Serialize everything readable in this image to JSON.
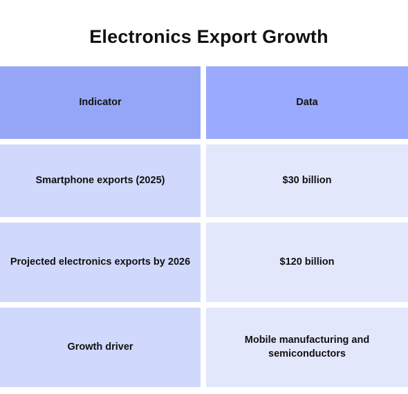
{
  "title": "Electronics Export Growth",
  "table": {
    "headers": [
      "Indicator",
      "Data"
    ],
    "rows": [
      [
        "Smartphone exports (2025)",
        "$30 billion"
      ],
      [
        "Projected electronics exports by 2026",
        "$120 billion"
      ],
      [
        "Growth driver",
        "Mobile manufacturing and semiconductors"
      ]
    ]
  },
  "colors": {
    "header_left": "#96a6f7",
    "header_right": "#9aaafe",
    "body_left": "#d0d8fc",
    "body_right": "#e3e7fc"
  }
}
